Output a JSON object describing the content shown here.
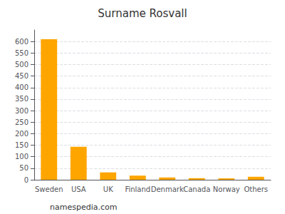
{
  "chart_data": {
    "type": "bar",
    "title": "Surname Rosvall",
    "categories": [
      "Sweden",
      "USA",
      "UK",
      "Finland",
      "Denmark",
      "Canada",
      "Norway",
      "Others"
    ],
    "values": [
      610,
      143,
      32,
      18,
      10,
      7,
      6,
      13
    ],
    "color": "#FFA500",
    "ylim": [
      0,
      650
    ],
    "yticks": [
      0,
      50,
      100,
      150,
      200,
      250,
      300,
      350,
      400,
      450,
      500,
      550,
      600
    ],
    "grid": true,
    "annotation": "namespedia.com"
  }
}
